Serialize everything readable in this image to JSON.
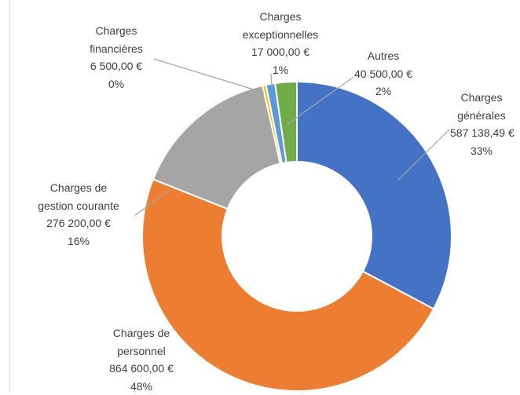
{
  "chart_data": {
    "type": "doughnut",
    "categories": [
      "Charges générales",
      "Charges de personnel",
      "Charges de gestion courante",
      "Charges financières",
      "Charges exceptionnelles",
      "Autres"
    ],
    "values": [
      587138.49,
      864600,
      276200,
      6500,
      17000,
      40500
    ],
    "value_labels": [
      "587 138,49 €",
      "864 600,00 €",
      "276 200,00 €",
      "6 500,00 €",
      "17 000,00 €",
      "40 500,00 €"
    ],
    "percent_labels": [
      "33%",
      "48%",
      "16%",
      "0%",
      "1%",
      "2%"
    ],
    "colors": [
      "#4472c4",
      "#ed7d31",
      "#a5a5a5",
      "#ffc000",
      "#5b9bd5",
      "#70ad47"
    ]
  }
}
